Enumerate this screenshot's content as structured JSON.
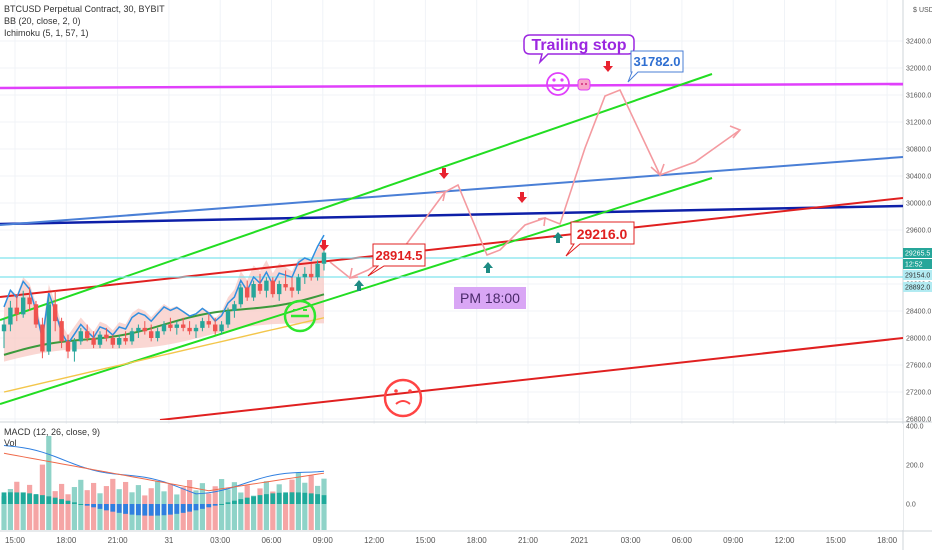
{
  "chart_data": {
    "type": "candlestick",
    "symbol": "BTCUSD Perpetual Contract, 30, BYBIT",
    "indicators": [
      "BB (20, close, 2, 0)",
      "Ichimoku (5, 1, 57, 1)"
    ],
    "macd_label": "MACD (12, 26, close, 9)",
    "vol_label": "Vol",
    "currency": "USD",
    "price_axis": {
      "ticks": [
        "32400.0",
        "32000.0",
        "31600.0",
        "31200.0",
        "30800.0",
        "30400.0",
        "30000.0",
        "29600.0",
        "28800.0",
        "28400.0",
        "28000.0",
        "27600.0",
        "27200.0",
        "26800.0"
      ],
      "range": [
        26800,
        33200
      ]
    },
    "price_badges": [
      {
        "text": "29265.5",
        "value": 29265.5,
        "bg": "#26a69a",
        "fg": "#ffffff"
      },
      {
        "text": "12:52",
        "value": 29200,
        "bg": "#26a69a",
        "fg": "#ffffff"
      },
      {
        "text": "29154.0",
        "value": 29154,
        "bg": "#b2ebf2",
        "fg": "#333333"
      },
      {
        "text": "28892.0",
        "value": 28892,
        "bg": "#b2ebf2",
        "fg": "#333333"
      }
    ],
    "macd_axis": {
      "ticks": [
        "400.0",
        "200.0",
        "0.0"
      ],
      "range": [
        -130,
        420
      ]
    },
    "x_ticks": [
      "15:00",
      "18:00",
      "21:00",
      "31",
      "03:00",
      "06:00",
      "09:00",
      "12:00",
      "15:00",
      "18:00",
      "21:00",
      "2021",
      "03:00",
      "06:00",
      "09:00",
      "12:00",
      "15:00",
      "18:00"
    ],
    "annotations": {
      "trailing_stop": "Trailing stop",
      "price_31782": "31782.0",
      "price_28914": "28914.5",
      "price_29216": "29216.0",
      "pm_time": "PM 18:00"
    },
    "candles": [
      [
        28100,
        28300,
        27850,
        28200
      ],
      [
        28200,
        28550,
        28100,
        28450
      ],
      [
        28450,
        28650,
        28250,
        28350
      ],
      [
        28350,
        28700,
        28300,
        28600
      ],
      [
        28600,
        28750,
        28400,
        28500
      ],
      [
        28500,
        28550,
        28150,
        28200
      ],
      [
        28200,
        28300,
        27700,
        27800
      ],
      [
        27800,
        28600,
        27750,
        28500
      ],
      [
        28500,
        28700,
        28100,
        28250
      ],
      [
        28250,
        28300,
        27850,
        27950
      ],
      [
        27950,
        28050,
        27700,
        27800
      ],
      [
        27800,
        28000,
        27650,
        27950
      ],
      [
        27950,
        28150,
        27900,
        28100
      ],
      [
        28100,
        28200,
        27950,
        28000
      ],
      [
        28000,
        28100,
        27850,
        27900
      ],
      [
        27900,
        28100,
        27850,
        28050
      ],
      [
        28050,
        28150,
        27950,
        28000
      ],
      [
        28000,
        28050,
        27850,
        27900
      ],
      [
        27900,
        28050,
        27850,
        28000
      ],
      [
        28000,
        28100,
        27900,
        27950
      ],
      [
        27950,
        28150,
        27900,
        28100
      ],
      [
        28100,
        28200,
        28000,
        28150
      ],
      [
        28150,
        28250,
        28050,
        28100
      ],
      [
        28100,
        28200,
        27950,
        28000
      ],
      [
        28000,
        28150,
        27950,
        28100
      ],
      [
        28100,
        28250,
        28050,
        28200
      ],
      [
        28200,
        28300,
        28100,
        28150
      ],
      [
        28150,
        28250,
        28050,
        28200
      ],
      [
        28200,
        28300,
        28100,
        28150
      ],
      [
        28150,
        28250,
        28050,
        28100
      ],
      [
        28100,
        28200,
        28000,
        28150
      ],
      [
        28150,
        28300,
        28100,
        28250
      ],
      [
        28250,
        28350,
        28150,
        28200
      ],
      [
        28200,
        28300,
        28050,
        28100
      ],
      [
        28100,
        28250,
        28050,
        28200
      ],
      [
        28200,
        28450,
        28150,
        28400
      ],
      [
        28400,
        28550,
        28300,
        28500
      ],
      [
        28500,
        28800,
        28450,
        28750
      ],
      [
        28750,
        28850,
        28550,
        28600
      ],
      [
        28600,
        28850,
        28550,
        28800
      ],
      [
        28800,
        28950,
        28650,
        28700
      ],
      [
        28700,
        28900,
        28600,
        28850
      ],
      [
        28850,
        28900,
        28600,
        28650
      ],
      [
        28650,
        28850,
        28550,
        28800
      ],
      [
        28800,
        29000,
        28700,
        28750
      ],
      [
        28750,
        28900,
        28600,
        28700
      ],
      [
        28700,
        28950,
        28650,
        28900
      ],
      [
        28900,
        29050,
        28800,
        28950
      ],
      [
        28950,
        29100,
        28850,
        28900
      ],
      [
        28900,
        29150,
        28850,
        29100
      ],
      [
        29100,
        29350,
        29000,
        29265
      ]
    ]
  }
}
